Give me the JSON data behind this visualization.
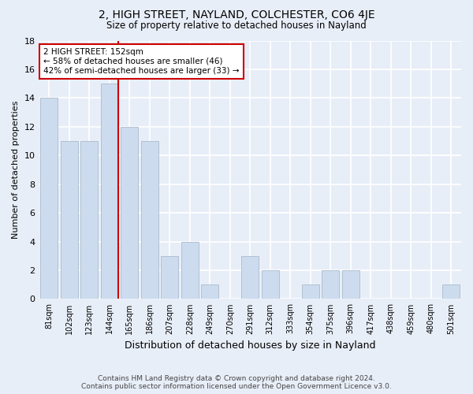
{
  "title": "2, HIGH STREET, NAYLAND, COLCHESTER, CO6 4JE",
  "subtitle": "Size of property relative to detached houses in Nayland",
  "xlabel": "Distribution of detached houses by size in Nayland",
  "ylabel": "Number of detached properties",
  "categories": [
    "81sqm",
    "102sqm",
    "123sqm",
    "144sqm",
    "165sqm",
    "186sqm",
    "207sqm",
    "228sqm",
    "249sqm",
    "270sqm",
    "291sqm",
    "312sqm",
    "333sqm",
    "354sqm",
    "375sqm",
    "396sqm",
    "417sqm",
    "438sqm",
    "459sqm",
    "480sqm",
    "501sqm"
  ],
  "values": [
    14,
    11,
    11,
    15,
    12,
    11,
    3,
    4,
    1,
    0,
    3,
    2,
    0,
    1,
    2,
    2,
    0,
    0,
    0,
    0,
    1
  ],
  "bar_color": "#ccdcee",
  "bar_edge_color": "#aabbcc",
  "vline_color": "#cc0000",
  "annotation_text": "2 HIGH STREET: 152sqm\n← 58% of detached houses are smaller (46)\n42% of semi-detached houses are larger (33) →",
  "annotation_box_color": "#ffffff",
  "annotation_box_edge_color": "#cc0000",
  "ylim": [
    0,
    18
  ],
  "yticks": [
    0,
    2,
    4,
    6,
    8,
    10,
    12,
    14,
    16,
    18
  ],
  "background_color": "#e8eef8",
  "grid_color": "#ffffff",
  "footer_line1": "Contains HM Land Registry data © Crown copyright and database right 2024.",
  "footer_line2": "Contains public sector information licensed under the Open Government Licence v3.0."
}
